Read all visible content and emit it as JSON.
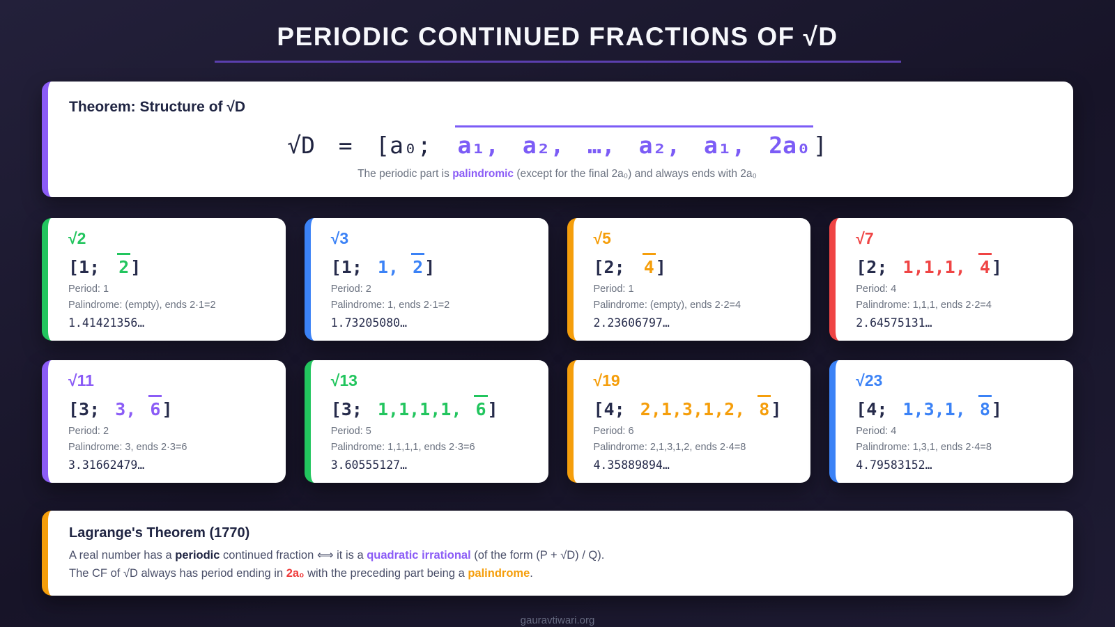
{
  "page": {
    "title": "PERIODIC CONTINUED FRACTIONS OF √D",
    "footer": "gauravtiwari.org"
  },
  "colors": {
    "background": "#1a1831",
    "title_underline": "#5b3fae",
    "formula_purple": "#7c5cf6",
    "green": "#22c55e",
    "blue": "#3b82f6",
    "amber": "#f59e0b",
    "red": "#ef4444",
    "purple": "#8b5cf6"
  },
  "theorem": {
    "color": "#8b5cf6",
    "title": "Theorem: Structure of √D",
    "formula": {
      "lhs": "√D = [a₀; ",
      "periodic": "a₁, a₂, …, a₂, a₁, 2a₀",
      "close": "]"
    },
    "note": {
      "p1": "The periodic part is ",
      "highlight": "palindromic",
      "p2": " (except for the final 2a₀) and always ends with 2a₀"
    }
  },
  "cards": [
    {
      "root": "√2",
      "color": "#22c55e",
      "cf_head": "[1; ",
      "cf_body": "",
      "cf_last": "2",
      "cf_close": "]",
      "period": "Period: 1",
      "palindrome": "Palindrome: (empty), ends 2·1=2",
      "decimal": "1.41421356…"
    },
    {
      "root": "√3",
      "color": "#3b82f6",
      "cf_head": "[1; ",
      "cf_body": "1, ",
      "cf_last": "2",
      "cf_close": "]",
      "period": "Period: 2",
      "palindrome": "Palindrome: 1, ends 2·1=2",
      "decimal": "1.73205080…"
    },
    {
      "root": "√5",
      "color": "#f59e0b",
      "cf_head": "[2; ",
      "cf_body": "",
      "cf_last": "4",
      "cf_close": "]",
      "period": "Period: 1",
      "palindrome": "Palindrome: (empty), ends 2·2=4",
      "decimal": "2.23606797…"
    },
    {
      "root": "√7",
      "color": "#ef4444",
      "cf_head": "[2; ",
      "cf_body": "1,1,1, ",
      "cf_last": "4",
      "cf_close": "]",
      "period": "Period: 4",
      "palindrome": "Palindrome: 1,1,1, ends 2·2=4",
      "decimal": "2.64575131…"
    },
    {
      "root": "√11",
      "color": "#8b5cf6",
      "cf_head": "[3; ",
      "cf_body": "3, ",
      "cf_last": "6",
      "cf_close": "]",
      "period": "Period: 2",
      "palindrome": "Palindrome: 3, ends 2·3=6",
      "decimal": "3.31662479…"
    },
    {
      "root": "√13",
      "color": "#22c55e",
      "cf_head": "[3; ",
      "cf_body": "1,1,1,1, ",
      "cf_last": "6",
      "cf_close": "]",
      "period": "Period: 5",
      "palindrome": "Palindrome: 1,1,1,1, ends 2·3=6",
      "decimal": "3.60555127…"
    },
    {
      "root": "√19",
      "color": "#f59e0b",
      "cf_head": "[4; ",
      "cf_body": "2,1,3,1,2, ",
      "cf_last": "8",
      "cf_close": "]",
      "period": "Period: 6",
      "palindrome": "Palindrome: 2,1,3,1,2, ends 2·4=8",
      "decimal": "4.35889894…"
    },
    {
      "root": "√23",
      "color": "#3b82f6",
      "cf_head": "[4; ",
      "cf_body": "1,3,1, ",
      "cf_last": "8",
      "cf_close": "]",
      "period": "Period: 4",
      "palindrome": "Palindrome: 1,3,1, ends 2·4=8",
      "decimal": "4.79583152…"
    }
  ],
  "lagrange": {
    "color": "#f59e0b",
    "title": "Lagrange's Theorem (1770)",
    "line1": {
      "p1": "A real number has a ",
      "b1": "periodic",
      "p2": " continued fraction ⟺ it is a ",
      "b2": "quadratic irrational",
      "p3": " (of the form (P + √D) / Q)."
    },
    "line2": {
      "p1": "The CF of √D always has period ending in ",
      "b1": "2a₀",
      "p2": " with the preceding part being a ",
      "b2": "palindrome",
      "p3": "."
    }
  }
}
